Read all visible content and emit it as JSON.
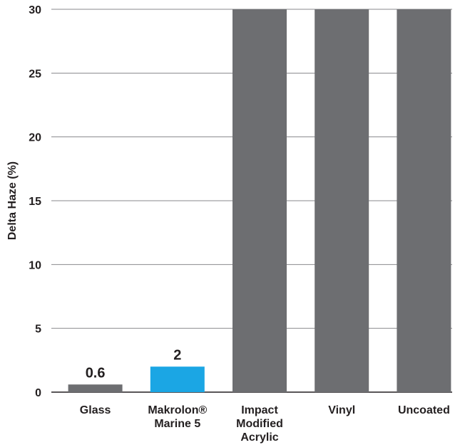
{
  "chart_data": {
    "type": "bar",
    "y_label": "Delta Haze (%)",
    "categories": [
      [
        "Glass"
      ],
      [
        "Makrolon®",
        "Marine 5"
      ],
      [
        "Impact",
        "Modified",
        "Acrylic"
      ],
      [
        "Vinyl"
      ],
      [
        "Uncoated"
      ]
    ],
    "values": [
      0.6,
      2,
      30,
      30,
      30
    ],
    "value_labels": [
      "0.6",
      "2",
      null,
      null,
      null
    ],
    "colors": [
      "#6d6e71",
      "#1ba6e4",
      "#6d6e71",
      "#6d6e71",
      "#6d6e71"
    ],
    "ylim": [
      0,
      30
    ],
    "yticks": [
      0,
      5,
      10,
      15,
      20,
      25,
      30
    ],
    "grid": true
  }
}
